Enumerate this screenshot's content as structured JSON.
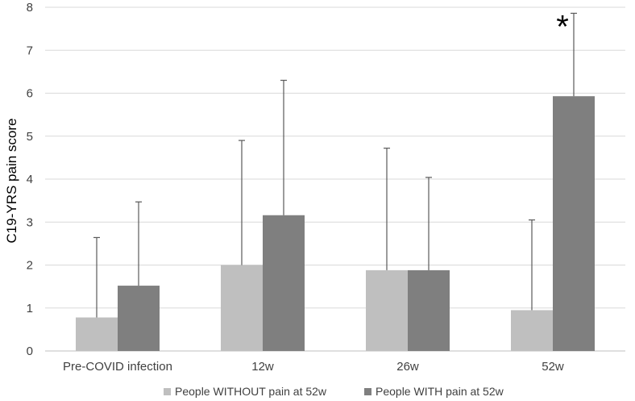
{
  "chart_data": {
    "type": "bar",
    "title": "",
    "xlabel": "",
    "ylabel": "C19-YRS pain score",
    "ylim": [
      0,
      8
    ],
    "yticks": [
      0,
      1,
      2,
      3,
      4,
      5,
      6,
      7,
      8
    ],
    "grid": true,
    "legend_position": "bottom",
    "categories": [
      "Pre-COVID infection",
      "12w",
      "26w",
      "52w"
    ],
    "series": [
      {
        "name": "People WITHOUT pain at 52w",
        "color": "#bfbfbf",
        "values": [
          0.78,
          2.0,
          1.88,
          0.95
        ],
        "error_upper": [
          2.64,
          4.9,
          4.72,
          3.05
        ]
      },
      {
        "name": "People WITH pain at 52w",
        "color": "#7f7f7f",
        "values": [
          1.52,
          3.16,
          1.88,
          5.93
        ],
        "error_upper": [
          3.47,
          6.3,
          4.04,
          7.86
        ]
      }
    ],
    "annotations": [
      {
        "text": "*",
        "category": "52w",
        "series": 1
      }
    ]
  }
}
